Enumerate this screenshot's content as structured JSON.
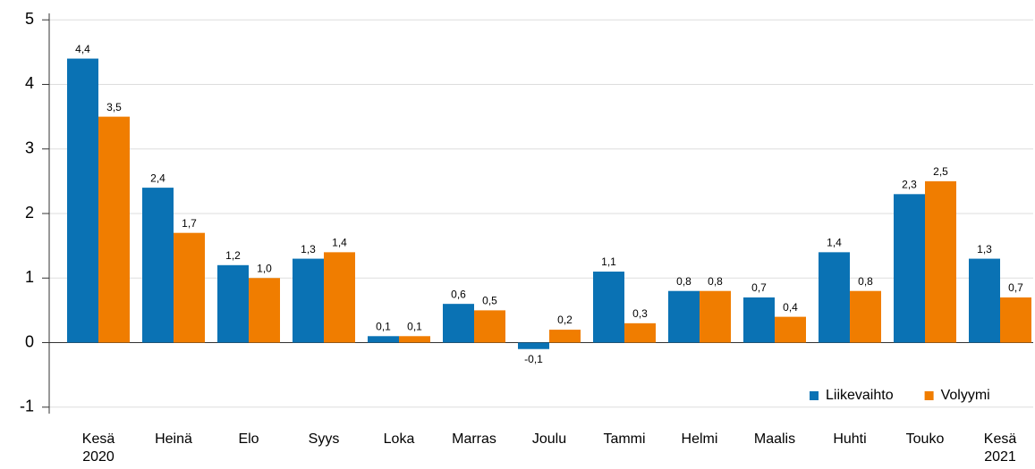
{
  "chart_data": {
    "type": "bar",
    "categories": [
      "Kesä 2020",
      "Heinä",
      "Elo",
      "Syys",
      "Loka",
      "Marras",
      "Joulu",
      "Tammi",
      "Helmi",
      "Maalis",
      "Huhti",
      "Touko",
      "Kesä 2021"
    ],
    "series": [
      {
        "name": "Liikevaihto",
        "color": "#0a72b4",
        "values": [
          4.4,
          2.4,
          1.2,
          1.3,
          0.1,
          0.6,
          -0.1,
          1.1,
          0.8,
          0.7,
          1.4,
          2.3,
          1.3
        ],
        "value_labels": [
          "4,4",
          "2,4",
          "1,2",
          "1,3",
          "0,1",
          "0,6",
          "-0,1",
          "1,1",
          "0,8",
          "0,7",
          "1,4",
          "2,3",
          "1,3"
        ]
      },
      {
        "name": "Volyymi",
        "color": "#f07d00",
        "values": [
          3.5,
          1.7,
          1.0,
          1.4,
          0.1,
          0.5,
          0.2,
          0.3,
          0.8,
          0.4,
          0.8,
          2.5,
          0.7
        ],
        "value_labels": [
          "3,5",
          "1,7",
          "1,0",
          "1,4",
          "0,1",
          "0,5",
          "0,2",
          "0,3",
          "0,8",
          "0,4",
          "0,8",
          "2,5",
          "0,7"
        ]
      }
    ],
    "ylim": [
      -1.1,
      5.1
    ],
    "yticks": [
      -1,
      0,
      1,
      2,
      3,
      4,
      5
    ],
    "grid": true,
    "legend": "lower right"
  }
}
